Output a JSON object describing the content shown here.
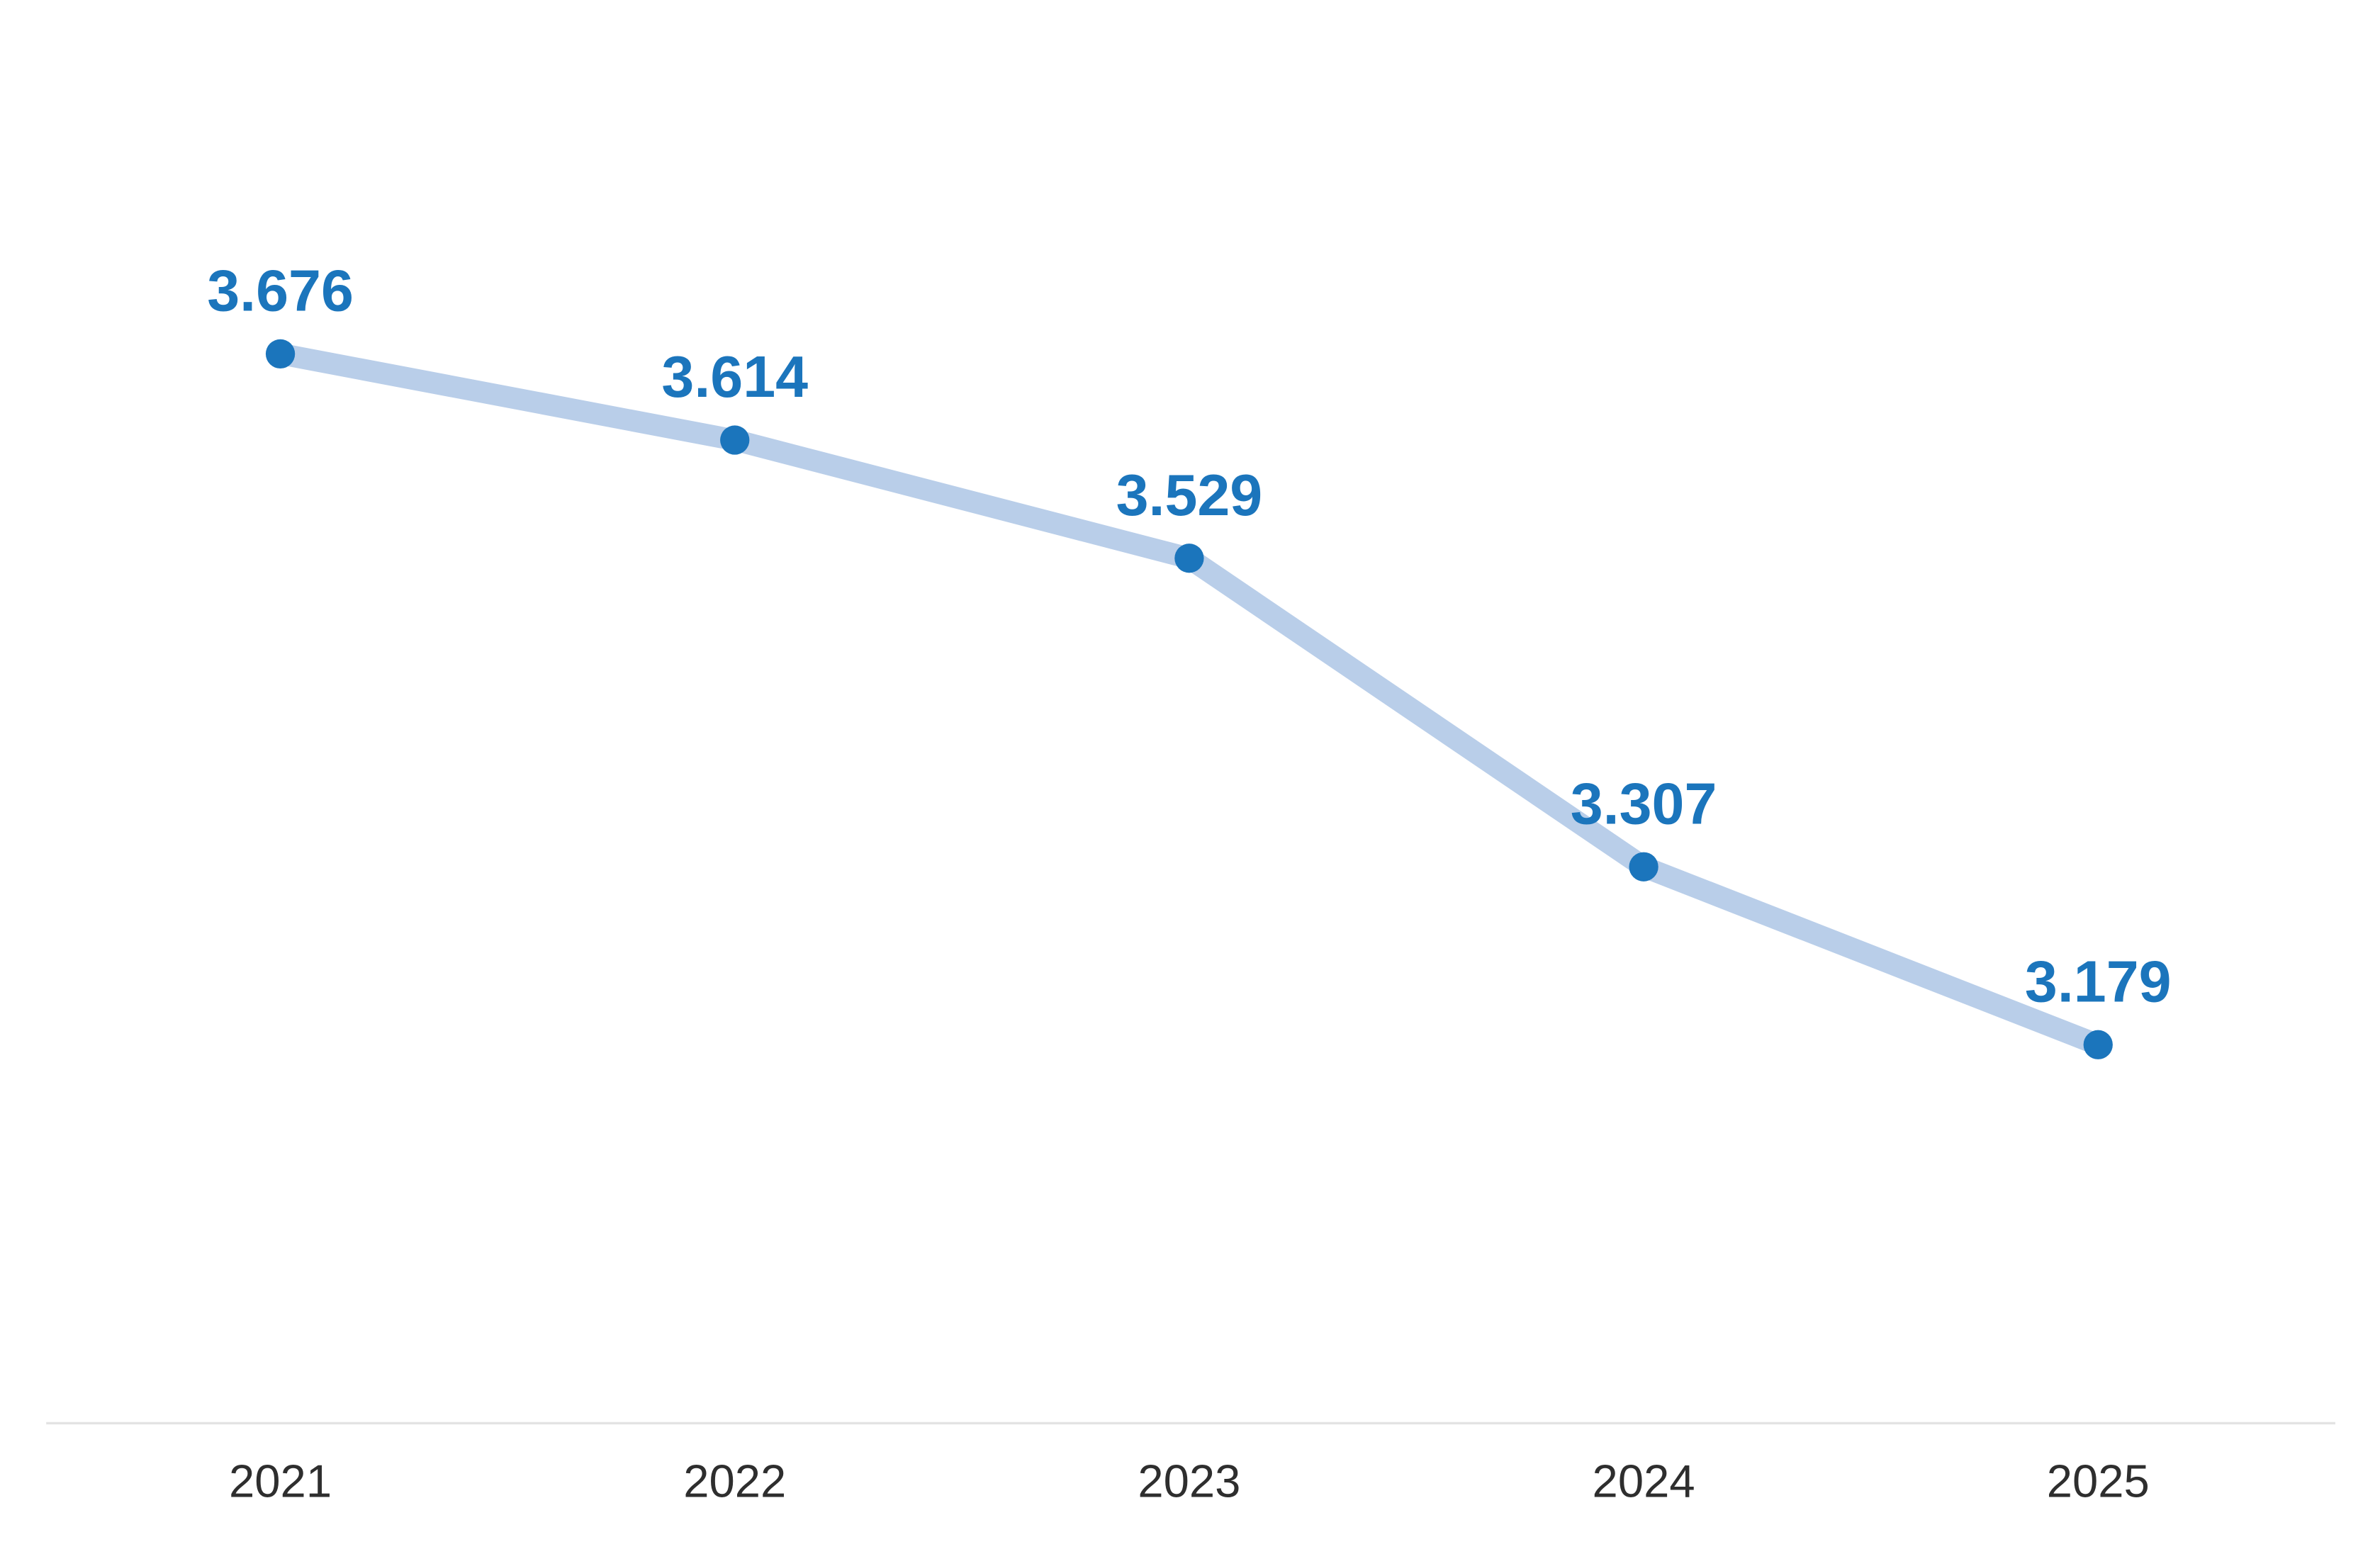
{
  "chart_data": {
    "type": "line",
    "categories": [
      "2021",
      "2022",
      "2023",
      "2024",
      "2025"
    ],
    "values": [
      3.676,
      3.614,
      3.529,
      3.307,
      3.179
    ],
    "value_labels": [
      "3.676",
      "3.614",
      "3.529",
      "3.307",
      "3.179"
    ],
    "title": "",
    "xlabel": "",
    "ylabel": "",
    "ylim": [
      3.1,
      3.75
    ],
    "grid": false,
    "legend": false,
    "marker": "circle",
    "colors": {
      "line": "#b9cee9",
      "marker": "#1b75bc",
      "value_label": "#1b75bc",
      "axis_label": "#2e2e2e",
      "axis_line": "#e3e3e3",
      "background": "#ffffff"
    }
  }
}
